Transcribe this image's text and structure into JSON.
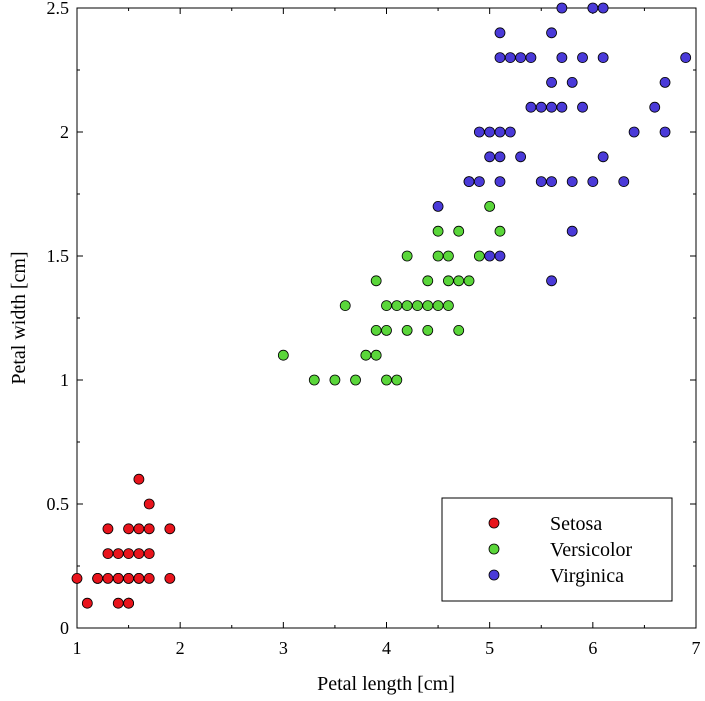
{
  "chart_data": {
    "type": "scatter",
    "title": "",
    "xlabel": "Petal length [cm]",
    "ylabel": "Petal width [cm]",
    "xlim": [
      1,
      7
    ],
    "ylim": [
      0,
      2.5
    ],
    "xticks": [
      "1",
      "2",
      "3",
      "4",
      "5",
      "6",
      "7"
    ],
    "yticks": [
      "0",
      "0.5",
      "1",
      "1.5",
      "2",
      "2.5"
    ],
    "grid": false,
    "legend_position": "bottom-right",
    "series": [
      {
        "name": "Setosa",
        "color": "#e8141c",
        "points": [
          [
            1.0,
            0.2
          ],
          [
            1.1,
            0.1
          ],
          [
            1.2,
            0.2
          ],
          [
            1.2,
            0.2
          ],
          [
            1.3,
            0.2
          ],
          [
            1.3,
            0.3
          ],
          [
            1.3,
            0.4
          ],
          [
            1.4,
            0.2
          ],
          [
            1.4,
            0.3
          ],
          [
            1.4,
            0.1
          ],
          [
            1.4,
            0.2
          ],
          [
            1.5,
            0.2
          ],
          [
            1.5,
            0.4
          ],
          [
            1.5,
            0.1
          ],
          [
            1.5,
            0.3
          ],
          [
            1.5,
            0.1
          ],
          [
            1.5,
            0.2
          ],
          [
            1.6,
            0.2
          ],
          [
            1.6,
            0.4
          ],
          [
            1.6,
            0.6
          ],
          [
            1.6,
            0.2
          ],
          [
            1.6,
            0.3
          ],
          [
            1.7,
            0.4
          ],
          [
            1.7,
            0.3
          ],
          [
            1.7,
            0.5
          ],
          [
            1.7,
            0.2
          ],
          [
            1.9,
            0.4
          ],
          [
            1.9,
            0.2
          ]
        ]
      },
      {
        "name": "Versicolor",
        "color": "#5ad63a",
        "points": [
          [
            3.0,
            1.1
          ],
          [
            3.3,
            1.0
          ],
          [
            3.5,
            1.0
          ],
          [
            3.6,
            1.3
          ],
          [
            3.7,
            1.0
          ],
          [
            3.8,
            1.1
          ],
          [
            3.9,
            1.1
          ],
          [
            3.9,
            1.2
          ],
          [
            3.9,
            1.4
          ],
          [
            4.0,
            1.3
          ],
          [
            4.0,
            1.2
          ],
          [
            4.0,
            1.0
          ],
          [
            4.1,
            1.3
          ],
          [
            4.1,
            1.0
          ],
          [
            4.2,
            1.3
          ],
          [
            4.2,
            1.5
          ],
          [
            4.2,
            1.2
          ],
          [
            4.3,
            1.3
          ],
          [
            4.4,
            1.4
          ],
          [
            4.4,
            1.3
          ],
          [
            4.4,
            1.2
          ],
          [
            4.5,
            1.5
          ],
          [
            4.5,
            1.3
          ],
          [
            4.5,
            1.6
          ],
          [
            4.6,
            1.3
          ],
          [
            4.6,
            1.4
          ],
          [
            4.6,
            1.5
          ],
          [
            4.7,
            1.4
          ],
          [
            4.7,
            1.6
          ],
          [
            4.7,
            1.2
          ],
          [
            4.8,
            1.8
          ],
          [
            4.8,
            1.4
          ],
          [
            4.9,
            1.5
          ],
          [
            5.0,
            1.7
          ],
          [
            5.1,
            1.6
          ]
        ]
      },
      {
        "name": "Virginica",
        "color": "#4a3ad8",
        "points": [
          [
            4.5,
            1.7
          ],
          [
            4.8,
            1.8
          ],
          [
            4.9,
            1.8
          ],
          [
            4.9,
            2.0
          ],
          [
            5.0,
            1.5
          ],
          [
            5.0,
            1.9
          ],
          [
            5.0,
            2.0
          ],
          [
            5.1,
            1.5
          ],
          [
            5.1,
            1.8
          ],
          [
            5.1,
            1.9
          ],
          [
            5.1,
            2.0
          ],
          [
            5.1,
            2.3
          ],
          [
            5.1,
            2.4
          ],
          [
            5.2,
            2.0
          ],
          [
            5.2,
            2.3
          ],
          [
            5.3,
            1.9
          ],
          [
            5.3,
            2.3
          ],
          [
            5.4,
            2.1
          ],
          [
            5.4,
            2.3
          ],
          [
            5.5,
            1.8
          ],
          [
            5.5,
            2.1
          ],
          [
            5.6,
            1.4
          ],
          [
            5.6,
            1.8
          ],
          [
            5.6,
            2.1
          ],
          [
            5.6,
            2.2
          ],
          [
            5.6,
            2.4
          ],
          [
            5.7,
            2.1
          ],
          [
            5.7,
            2.3
          ],
          [
            5.7,
            2.5
          ],
          [
            5.8,
            1.6
          ],
          [
            5.8,
            1.8
          ],
          [
            5.8,
            2.2
          ],
          [
            5.9,
            2.1
          ],
          [
            5.9,
            2.3
          ],
          [
            6.0,
            1.8
          ],
          [
            6.0,
            2.5
          ],
          [
            6.1,
            1.9
          ],
          [
            6.1,
            2.3
          ],
          [
            6.1,
            2.5
          ],
          [
            6.3,
            1.8
          ],
          [
            6.4,
            2.0
          ],
          [
            6.6,
            2.1
          ],
          [
            6.7,
            2.0
          ],
          [
            6.7,
            2.2
          ],
          [
            6.9,
            2.3
          ]
        ]
      }
    ]
  }
}
